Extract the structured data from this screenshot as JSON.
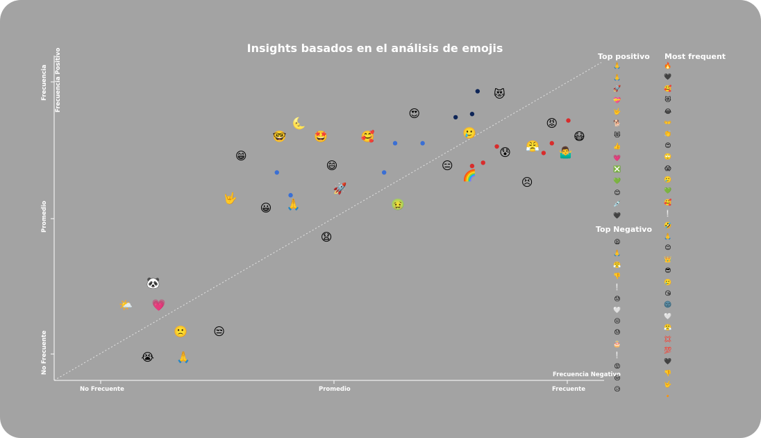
{
  "chart_data": {
    "type": "scatter",
    "title": "Insights basados en el análisis de emojis",
    "xlabel_ticks": [
      "No Frecuente",
      "Promedio",
      "Frecuente"
    ],
    "ylabel_ticks": [
      "No Frecuente",
      "Promedio",
      "Frecuencia"
    ],
    "ylabel_extra": "Frecuencia Positivo",
    "xlabel_extra": "Frecuencia Negativo",
    "xlim": [
      0,
      100
    ],
    "ylim": [
      0,
      100
    ],
    "diagonal_reference_line": true,
    "emoji_points": [
      {
        "x": 18,
        "y": 30,
        "emoji": "🐼"
      },
      {
        "x": 13,
        "y": 23,
        "emoji": "🌤️"
      },
      {
        "x": 19,
        "y": 23,
        "emoji": "💗"
      },
      {
        "x": 23,
        "y": 15,
        "emoji": "🙁"
      },
      {
        "x": 30,
        "y": 15,
        "emoji": "😒"
      },
      {
        "x": 17,
        "y": 7,
        "emoji": "😭"
      },
      {
        "x": 23.5,
        "y": 7,
        "emoji": "🙏"
      },
      {
        "x": 34,
        "y": 69,
        "emoji": "😁"
      },
      {
        "x": 32,
        "y": 56,
        "emoji": "🤟"
      },
      {
        "x": 38.5,
        "y": 53,
        "emoji": "😀"
      },
      {
        "x": 43.5,
        "y": 54,
        "emoji": "🙏"
      },
      {
        "x": 41,
        "y": 75,
        "emoji": "🤓"
      },
      {
        "x": 44.5,
        "y": 79,
        "emoji": "🌜"
      },
      {
        "x": 48.5,
        "y": 75,
        "emoji": "🤩"
      },
      {
        "x": 57,
        "y": 75,
        "emoji": "🥰"
      },
      {
        "x": 50.5,
        "y": 66,
        "emoji": "😄"
      },
      {
        "x": 52,
        "y": 59,
        "emoji": "🚀"
      },
      {
        "x": 49.5,
        "y": 44,
        "emoji": "😧"
      },
      {
        "x": 65.5,
        "y": 82,
        "emoji": "😍"
      },
      {
        "x": 62.5,
        "y": 54,
        "emoji": "🤢"
      },
      {
        "x": 81,
        "y": 88,
        "emoji": "😻"
      },
      {
        "x": 75.5,
        "y": 76,
        "emoji": "🥲"
      },
      {
        "x": 71.5,
        "y": 66,
        "emoji": "😑"
      },
      {
        "x": 75.5,
        "y": 63,
        "emoji": "🌈"
      },
      {
        "x": 82,
        "y": 70,
        "emoji": "😰"
      },
      {
        "x": 87,
        "y": 72,
        "emoji": "😤"
      },
      {
        "x": 86,
        "y": 61,
        "emoji": "😣"
      },
      {
        "x": 90.5,
        "y": 79,
        "emoji": "😡"
      },
      {
        "x": 93,
        "y": 70,
        "emoji": "🤷‍♂️"
      },
      {
        "x": 95.5,
        "y": 75,
        "emoji": "😷"
      }
    ],
    "dot_points": [
      {
        "x": 40.5,
        "y": 64,
        "color": "#3a6fd4"
      },
      {
        "x": 43,
        "y": 57,
        "color": "#3a6fd4"
      },
      {
        "x": 60,
        "y": 64,
        "color": "#3a6fd4"
      },
      {
        "x": 62,
        "y": 73,
        "color": "#3a6fd4"
      },
      {
        "x": 67,
        "y": 73,
        "color": "#3a6fd4"
      },
      {
        "x": 73,
        "y": 81,
        "color": "#0e2557"
      },
      {
        "x": 76,
        "y": 82,
        "color": "#0e2557"
      },
      {
        "x": 77,
        "y": 89,
        "color": "#0e2557"
      },
      {
        "x": 76,
        "y": 66,
        "color": "#d82c2c"
      },
      {
        "x": 78,
        "y": 67,
        "color": "#d82c2c"
      },
      {
        "x": 80.5,
        "y": 72,
        "color": "#d82c2c"
      },
      {
        "x": 89,
        "y": 70,
        "color": "#d82c2c"
      },
      {
        "x": 90.5,
        "y": 73,
        "color": "#d82c2c"
      },
      {
        "x": 93.5,
        "y": 80,
        "color": "#d82c2c"
      }
    ]
  },
  "top_positivo": {
    "heading": "Top positivo",
    "emojis": [
      "🙏",
      "🙏",
      "🚀",
      "💝",
      "🤟",
      "🐕",
      "😻",
      "👍",
      "💗",
      "❎",
      "💚",
      "😊",
      "💉",
      "🖤"
    ]
  },
  "top_negativo": {
    "heading": "Top Negativo",
    "emojis": [
      "😩",
      "🙏",
      "😤",
      "👎",
      "❕",
      "😓",
      "🤍",
      "😔",
      "😓",
      "🎂",
      "❕",
      "😡",
      "😒",
      "😥"
    ]
  },
  "most_frequent": {
    "heading": "Most frequent",
    "emojis": [
      "🔥",
      "🖤",
      "🥰",
      "😻",
      "😂",
      "👐",
      "👏",
      "😍",
      "🙄",
      "😱",
      "🥲",
      "💚",
      "🥰",
      "❕",
      "🤣",
      "🙏",
      "😊",
      "👑",
      "😎",
      "🥲",
      "😘",
      "🌚",
      "🤍",
      "😤",
      "💢",
      "💯",
      "🖤",
      "👎",
      "🤟",
      "🔸"
    ]
  }
}
